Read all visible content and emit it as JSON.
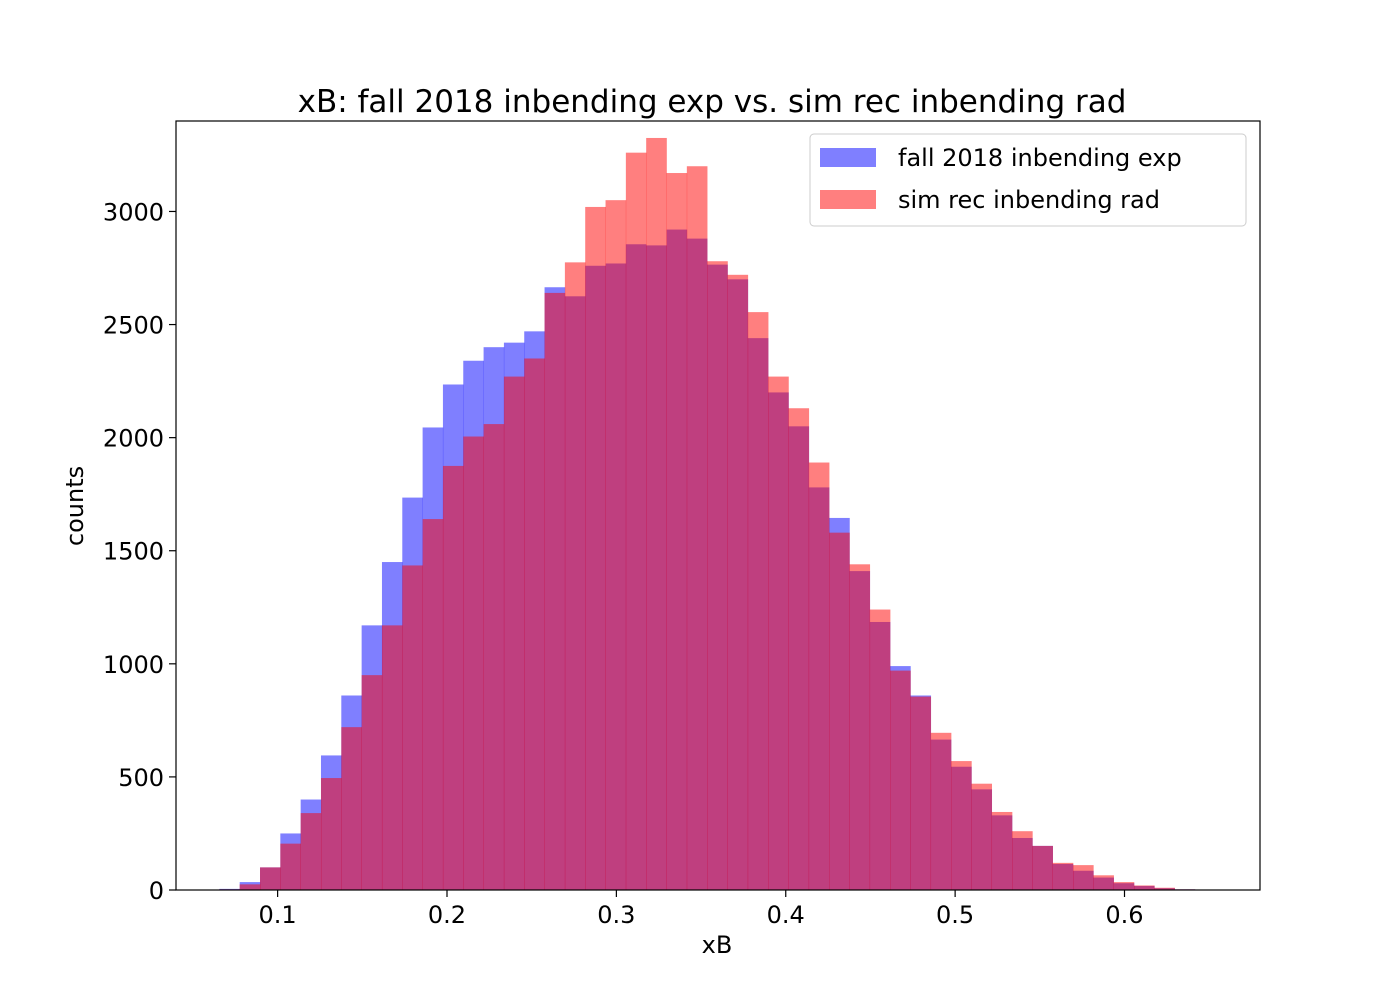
{
  "chart_data": {
    "type": "histogram",
    "title": "xB: fall 2018 inbending exp  vs. sim rec inbending rad",
    "xlabel": "xB",
    "ylabel": "counts",
    "xlim": [
      0.04,
      0.68
    ],
    "ylim": [
      0,
      3400
    ],
    "xticks": [
      0.1,
      0.2,
      0.3,
      0.4,
      0.5,
      0.6
    ],
    "xtick_labels": [
      "0.1",
      "0.2",
      "0.3",
      "0.4",
      "0.5",
      "0.6"
    ],
    "yticks": [
      0,
      500,
      1000,
      1500,
      2000,
      2500,
      3000
    ],
    "ytick_labels": [
      "0",
      "500",
      "1000",
      "1500",
      "2000",
      "2500",
      "3000"
    ],
    "grid": false,
    "legend_position": "top-right",
    "bin_edges": [
      0.0656,
      0.0776,
      0.0896,
      0.1016,
      0.1136,
      0.1256,
      0.1376,
      0.1496,
      0.1616,
      0.1736,
      0.1856,
      0.1976,
      0.2096,
      0.2216,
      0.2336,
      0.2456,
      0.2576,
      0.2696,
      0.2816,
      0.2936,
      0.3056,
      0.3176,
      0.3296,
      0.3416,
      0.3536,
      0.3656,
      0.3776,
      0.3896,
      0.4016,
      0.4136,
      0.4256,
      0.4376,
      0.4496,
      0.4616,
      0.4736,
      0.4856,
      0.4976,
      0.5096,
      0.5216,
      0.5336,
      0.5456,
      0.5576,
      0.5696,
      0.5816,
      0.5936,
      0.6056,
      0.6176,
      0.6296,
      0.6416
    ],
    "series": [
      {
        "name": "fall 2018 inbending exp",
        "color": "#0000ff",
        "alpha": 0.5,
        "values": [
          5,
          35,
          100,
          250,
          400,
          595,
          860,
          1170,
          1450,
          1735,
          2045,
          2235,
          2340,
          2400,
          2420,
          2470,
          2665,
          2625,
          2760,
          2770,
          2855,
          2850,
          2920,
          2880,
          2765,
          2700,
          2440,
          2200,
          2050,
          1780,
          1645,
          1410,
          1185,
          990,
          860,
          665,
          545,
          445,
          330,
          230,
          195,
          115,
          85,
          55,
          30,
          18,
          8,
          3
        ]
      },
      {
        "name": "sim rec inbending rad",
        "color": "#ff0000",
        "alpha": 0.5,
        "values": [
          3,
          25,
          100,
          205,
          340,
          495,
          720,
          950,
          1170,
          1435,
          1640,
          1875,
          2005,
          2060,
          2270,
          2350,
          2640,
          2775,
          3020,
          3050,
          3260,
          3325,
          3170,
          3200,
          2780,
          2720,
          2555,
          2270,
          2130,
          1890,
          1580,
          1440,
          1240,
          970,
          855,
          695,
          570,
          470,
          345,
          260,
          195,
          120,
          110,
          65,
          35,
          20,
          10,
          3
        ]
      }
    ]
  }
}
